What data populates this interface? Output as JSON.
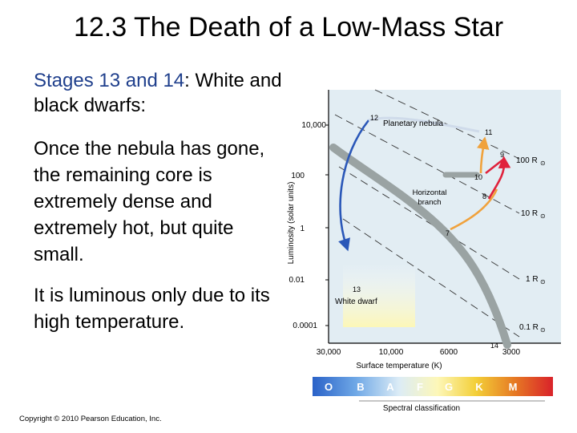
{
  "slide": {
    "title": "12.3 The Death of a Low-Mass Star",
    "p1_highlight": "Stages 13 and 14",
    "p1_rest": ": White and black dwarfs:",
    "p2": "Once the nebula has gone, the remaining core is extremely dense and extremely hot, but quite small.",
    "p3": "It is luminous only due to its high temperature.",
    "copyright": "Copyright © 2010 Pearson Education, Inc."
  },
  "diagram": {
    "y_axis_label": "Luminosity (solar units)",
    "x_axis_label": "Surface temperature (K)",
    "y_ticks": [
      "10,000",
      "100",
      "1",
      "0.01",
      "0.0001"
    ],
    "x_ticks": [
      "30,000",
      "10,000",
      "6000",
      "3000"
    ],
    "radius_labels": [
      "100 R",
      "10 R",
      "1 R",
      "0.1 R"
    ],
    "radius_symbol": "⊙",
    "region_labels": {
      "planetary_nebula": "Planetary nebula",
      "horizontal_branch_1": "Horizontal",
      "horizontal_branch_2": "branch",
      "white_dwarf": "White dwarf"
    },
    "stage_numbers": [
      "7",
      "8",
      "9",
      "10",
      "11",
      "12",
      "13",
      "14"
    ],
    "spectral_classes": [
      "O",
      "B",
      "A",
      "F",
      "G",
      "K",
      "M"
    ],
    "spectral_label": "Spectral classification",
    "colors": {
      "panel": "#e2edf3",
      "track_blue": "#2a57b8",
      "track_gray": "#9aa3a3",
      "red_track": "#e0223c",
      "orange_track": "#f0a23c"
    }
  }
}
